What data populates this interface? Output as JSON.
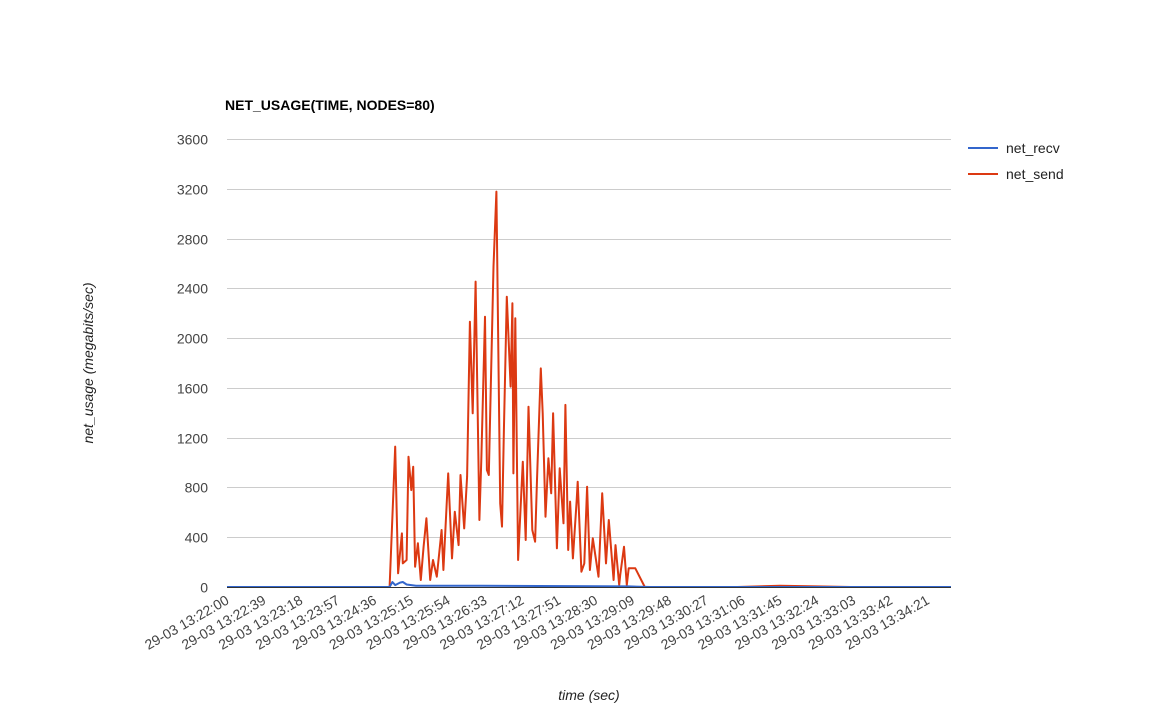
{
  "chart_data": {
    "type": "line",
    "title": "NET_USAGE(TIME, NODES=80)",
    "xlabel": "time (sec)",
    "ylabel": "net_usage (megabits/sec)",
    "date": "29-03",
    "xlim": [
      "13:22:00",
      "13:34:46"
    ],
    "ylim": [
      0,
      3600
    ],
    "yticks": [
      0,
      400,
      800,
      1200,
      1600,
      2000,
      2400,
      2800,
      3200,
      3600
    ],
    "xticks": [
      "29-03 13:22:00",
      "29-03 13:22:39",
      "29-03 13:23:18",
      "29-03 13:23:57",
      "29-03 13:24:36",
      "29-03 13:25:15",
      "29-03 13:25:54",
      "29-03 13:26:33",
      "29-03 13:27:12",
      "29-03 13:27:51",
      "29-03 13:28:30",
      "29-03 13:29:09",
      "29-03 13:29:48",
      "29-03 13:30:27",
      "29-03 13:31:06",
      "29-03 13:31:45",
      "29-03 13:32:24",
      "29-03 13:33:03",
      "29-03 13:33:42",
      "29-03 13:34:21"
    ],
    "grid": true,
    "legend_position": "right",
    "series": [
      {
        "name": "net_recv",
        "color": "#3366cc",
        "x": [
          "13:22:00",
          "13:24:52",
          "13:24:55",
          "13:24:58",
          "13:25:03",
          "13:25:06",
          "13:25:10",
          "13:25:20",
          "13:26:30",
          "13:27:30",
          "13:29:05",
          "13:29:28",
          "13:34:46"
        ],
        "y": [
          0,
          0,
          40,
          15,
          35,
          40,
          20,
          10,
          10,
          8,
          5,
          0,
          0
        ]
      },
      {
        "name": "net_send",
        "color": "#dc3912",
        "x": [
          "13:22:00",
          "13:24:50",
          "13:24:52",
          "13:24:58",
          "13:25:01",
          "13:25:05",
          "13:25:06",
          "13:25:10",
          "13:25:12",
          "13:25:15",
          "13:25:17",
          "13:25:19",
          "13:25:22",
          "13:25:25",
          "13:25:28",
          "13:25:31",
          "13:25:35",
          "13:25:38",
          "13:25:42",
          "13:25:47",
          "13:25:49",
          "13:25:54",
          "13:25:58",
          "13:26:01",
          "13:26:05",
          "13:26:07",
          "13:26:11",
          "13:26:14",
          "13:26:17",
          "13:26:20",
          "13:26:23",
          "13:26:27",
          "13:26:29",
          "13:26:33",
          "13:26:35",
          "13:26:37",
          "13:26:42",
          "13:26:45",
          "13:26:49",
          "13:26:51",
          "13:26:53",
          "13:26:56",
          "13:27:00",
          "13:27:02",
          "13:27:03",
          "13:27:05",
          "13:27:08",
          "13:27:13",
          "13:27:16",
          "13:27:19",
          "13:27:23",
          "13:27:26",
          "13:27:28",
          "13:27:32",
          "13:27:34",
          "13:27:37",
          "13:27:40",
          "13:27:43",
          "13:27:45",
          "13:27:49",
          "13:27:52",
          "13:27:56",
          "13:27:58",
          "13:28:01",
          "13:28:03",
          "13:28:06",
          "13:28:10",
          "13:28:11",
          "13:28:15",
          "13:28:18",
          "13:28:21",
          "13:28:24",
          "13:28:27",
          "13:28:33",
          "13:28:37",
          "13:28:41",
          "13:28:44",
          "13:28:49",
          "13:28:51",
          "13:28:55",
          "13:28:56",
          "13:29:00",
          "13:29:03",
          "13:29:05",
          "13:29:10",
          "13:29:12",
          "13:29:22",
          "13:29:26",
          "13:29:28",
          "13:31:00",
          "13:31:45",
          "13:32:24",
          "13:33:00",
          "13:34:46"
        ],
        "y": [
          0,
          0,
          0,
          1128,
          110,
          431,
          190,
          217,
          1047,
          779,
          967,
          163,
          351,
          56,
          324,
          552,
          56,
          217,
          83,
          458,
          137,
          913,
          230,
          605,
          337,
          900,
          471,
          887,
          2132,
          1396,
          2454,
          538,
          1020,
          2172,
          940,
          900,
          2574,
          3177,
          672,
          485,
          1262,
          2333,
          1610,
          2280,
          913,
          2159,
          217,
          1007,
          378,
          1449,
          458,
          364,
          860,
          1757,
          1396,
          565,
          1034,
          753,
          1396,
          311,
          954,
          512,
          1463,
          297,
          686,
          230,
          699,
          846,
          123,
          190,
          806,
          137,
          391,
          83,
          753,
          190,
          538,
          56,
          337,
          16,
          96,
          324,
          16,
          150,
          150,
          150,
          0,
          0,
          0,
          0,
          10,
          5,
          0,
          0
        ]
      }
    ]
  }
}
